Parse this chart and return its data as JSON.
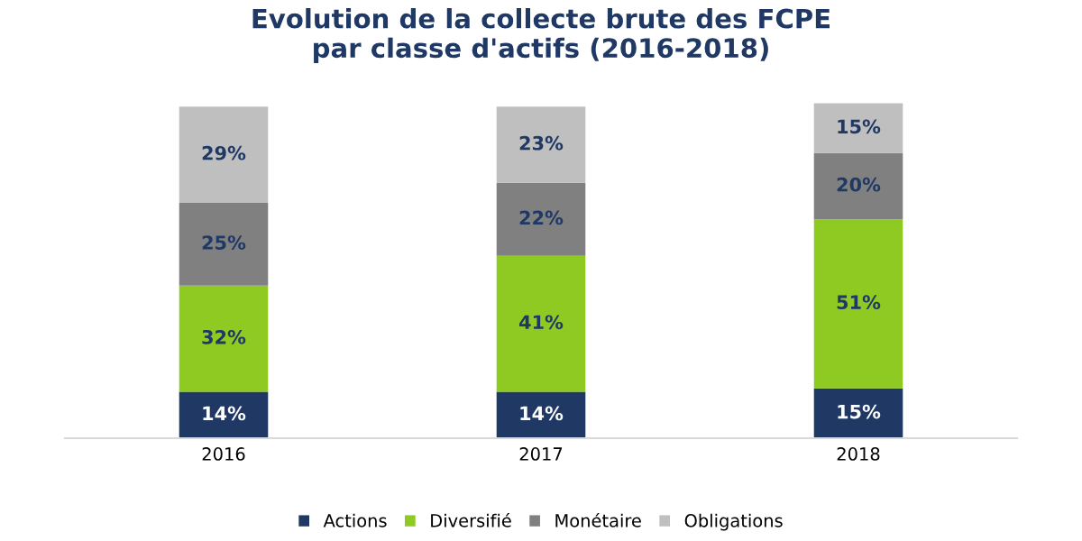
{
  "chart_data": {
    "type": "bar",
    "title": "Evolution de la collecte brute des FCPE\npar classe d'actifs (2016-2018)",
    "categories": [
      "2016",
      "2017",
      "2018"
    ],
    "stacked": true,
    "legend": "bottom",
    "grid": false,
    "series": [
      {
        "name": "Actions",
        "color": "#1f3864",
        "values": [
          14,
          14,
          15
        ],
        "value_labels": [
          "14%",
          "14%",
          "15%"
        ]
      },
      {
        "name": "Diversifié",
        "color": "#8fca22",
        "values": [
          32,
          41,
          51
        ],
        "value_labels": [
          "32%",
          "41%",
          "51%"
        ]
      },
      {
        "name": "Monétaire",
        "color": "#808080",
        "values": [
          25,
          22,
          20
        ],
        "value_labels": [
          "25%",
          "22%",
          "20%"
        ]
      },
      {
        "name": "Obligations",
        "color": "#bfbfbf",
        "values": [
          29,
          23,
          15
        ],
        "value_labels": [
          "29%",
          "23%",
          "15%"
        ]
      }
    ]
  }
}
